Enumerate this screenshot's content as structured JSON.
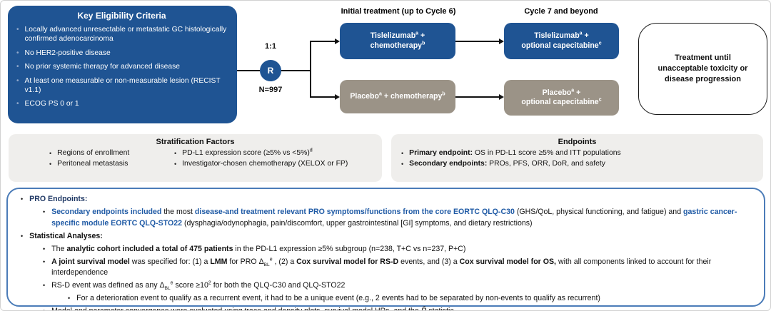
{
  "colors": {
    "navy_box": "#1F5493",
    "taupe_box": "#9B9387",
    "panel_gray": "#EFEEEC",
    "notes_border": "#4B7CB8",
    "text_blue": "#1F5AA5",
    "text_navy": "#1F3864"
  },
  "eligibility": {
    "title": "Key Eligibility Criteria",
    "items": [
      "Locally advanced unresectable or metastatic GC histologically confirmed adenocarcinoma",
      "No HER2-positive disease",
      "No prior systemic therapy for advanced disease",
      "At least one measurable or non-measurable lesion (RECIST v1.1)",
      "ECOG PS 0 or 1"
    ]
  },
  "randomization": {
    "ratio": "1:1",
    "symbol": "R",
    "n": "N=997"
  },
  "phase_headers": {
    "initial": "Initial treatment (up to Cycle 6)",
    "cycle7": "Cycle 7 and beyond"
  },
  "arms": {
    "initial_tislelizumab": [
      [
        {
          "t": "Tislelizumab"
        },
        {
          "t": "a",
          "sup": true
        },
        {
          "t": " +"
        }
      ],
      [
        {
          "t": "chemotherapy"
        },
        {
          "t": "b",
          "sup": true
        }
      ]
    ],
    "initial_placebo": [
      [
        {
          "t": "Placebo"
        },
        {
          "t": "a",
          "sup": true
        },
        {
          "t": " + chemotherapy"
        },
        {
          "t": "b",
          "sup": true
        }
      ]
    ],
    "cycle7_tislelizumab": [
      [
        {
          "t": "Tislelizumab"
        },
        {
          "t": "a",
          "sup": true
        },
        {
          "t": " +"
        }
      ],
      [
        {
          "t": "optional capecitabine"
        },
        {
          "t": "c",
          "sup": true
        }
      ]
    ],
    "cycle7_placebo": [
      [
        {
          "t": "Placebo"
        },
        {
          "t": "a",
          "sup": true
        },
        {
          "t": " +"
        }
      ],
      [
        {
          "t": "optional capecitabine"
        },
        {
          "t": "c",
          "sup": true
        }
      ]
    ]
  },
  "continuation_note": "Treatment until unacceptable toxicity or disease progression",
  "stratification": {
    "title": "Stratification Factors",
    "col1": [
      [
        {
          "t": "Regions of enrollment"
        }
      ],
      [
        {
          "t": "Peritoneal metastasis"
        }
      ]
    ],
    "col2": [
      [
        {
          "t": "PD-L1 expression score (≥5% vs <5%)"
        },
        {
          "t": "d",
          "sup": true
        }
      ],
      [
        {
          "t": "Investigator-chosen chemotherapy (XELOX or FP)"
        }
      ]
    ]
  },
  "endpoints": {
    "title": "Endpoints",
    "items": [
      [
        {
          "t": "Primary endpoint:",
          "b": true
        },
        {
          "t": " OS in PD-L1 score ≥5% and ITT populations"
        }
      ],
      [
        {
          "t": "Secondary endpoints:",
          "b": true
        },
        {
          "t": " PROs, PFS, ORR, DoR, and safety"
        }
      ]
    ]
  },
  "notes": {
    "lines": [
      {
        "ind": 0,
        "segs": [
          {
            "t": "PRO Endpoints:",
            "b": true,
            "c": "navy"
          }
        ]
      },
      {
        "ind": 1,
        "segs": [
          {
            "t": "Secondary endpoints included",
            "b": true,
            "c": "blue"
          },
          {
            "t": " the most "
          },
          {
            "t": "disease-and treatment relevant PRO symptoms/functions from the core EORTC QLQ-C30",
            "b": true,
            "c": "blue"
          },
          {
            "t": " (GHS/QoL, physical functioning, and fatigue) and "
          },
          {
            "t": "gastric cancer-specific module EORTC QLQ-STO22",
            "b": true,
            "c": "blue"
          },
          {
            "t": " (dysphagia/odynophagia, pain/discomfort, upper gastrointestinal [GI] symptoms, and dietary restrictions)"
          }
        ]
      },
      {
        "ind": 0,
        "segs": [
          {
            "t": "Statistical Analyses:",
            "b": true
          }
        ]
      },
      {
        "ind": 1,
        "segs": [
          {
            "t": "The "
          },
          {
            "t": "analytic cohort included a total of 475 patients",
            "b": true
          },
          {
            "t": " in the PD-L1 expression ≥5% subgroup (n=238, T+C vs n=237, P+C)"
          }
        ]
      },
      {
        "ind": 1,
        "segs": [
          {
            "t": "A joint survival model",
            "b": true
          },
          {
            "t": " was specified for: (1) a "
          },
          {
            "t": "LMM",
            "b": true
          },
          {
            "t": " for PRO Δ"
          },
          {
            "t": "BL",
            "sub": true
          },
          {
            "t": "e",
            "sup": true
          },
          {
            "t": " , (2) a "
          },
          {
            "t": "Cox survival model for RS-D",
            "b": true
          },
          {
            "t": " events, and (3) a "
          },
          {
            "t": "Cox survival model for OS,",
            "b": true
          },
          {
            "t": " with all components linked to account for their interdependence"
          }
        ]
      },
      {
        "ind": 1,
        "segs": [
          {
            "t": "RS-D event was defined as any Δ"
          },
          {
            "t": "BL",
            "sub": true
          },
          {
            "t": "e",
            "sup": true
          },
          {
            "t": " score ≥10"
          },
          {
            "t": "2",
            "sup": true
          },
          {
            "t": " for both the QLQ-C30 and QLQ-STO22"
          }
        ]
      },
      {
        "ind": 2,
        "segs": [
          {
            "t": "For a deterioration event to qualify as a recurrent event, it had to be a unique event (e.g., 2 events had to be separated by non-events to qualify as recurrent)"
          }
        ]
      },
      {
        "ind": 1,
        "segs": [
          {
            "t": "Model and parameter convergence were evaluated using trace and density plots, survival model HRs, and the "
          },
          {
            "t": "R̂",
            "i": true
          },
          {
            "t": " statistic"
          }
        ]
      }
    ]
  }
}
